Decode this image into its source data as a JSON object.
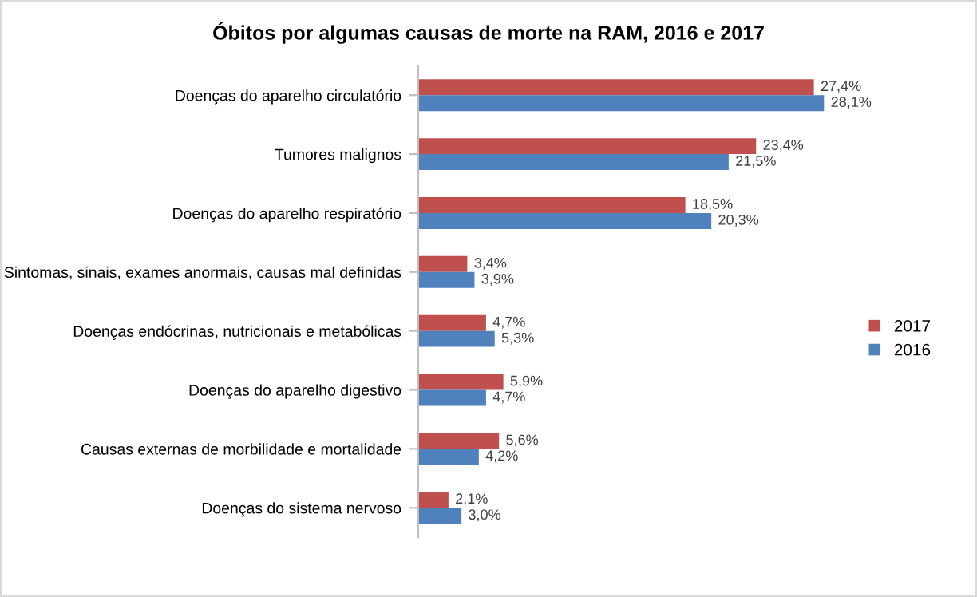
{
  "chart_data": {
    "type": "bar",
    "orientation": "horizontal",
    "title": "Óbitos por algumas causas de morte na RAM, 2016 e 2017",
    "categories": [
      "Doenças do aparelho circulatório",
      "Tumores malignos",
      "Doenças do aparelho respiratório",
      "Sintomas, sinais, exames anormais, causas mal definidas",
      "Doenças endócrinas, nutricionais e metabólicas",
      "Doenças do aparelho digestivo",
      "Causas externas de morbilidade e mortalidade",
      "Doenças do sistema nervoso"
    ],
    "series": [
      {
        "name": "2017",
        "color": "#c0504d",
        "values": [
          27.4,
          23.4,
          18.5,
          3.4,
          4.7,
          5.9,
          5.6,
          2.1
        ],
        "value_labels": [
          "27,4%",
          "23,4%",
          "18,5%",
          "3,4%",
          "4,7%",
          "5,9%",
          "5,6%",
          "2,1%"
        ]
      },
      {
        "name": "2016",
        "color": "#4f81bd",
        "values": [
          28.1,
          21.5,
          20.3,
          3.9,
          5.3,
          4.7,
          4.2,
          3.0
        ],
        "value_labels": [
          "28,1%",
          "21,5%",
          "20,3%",
          "3,9%",
          "5,3%",
          "4,7%",
          "4,2%",
          "3,0%"
        ]
      }
    ],
    "legend": "right",
    "grid": false,
    "tick_labels": "y"
  }
}
